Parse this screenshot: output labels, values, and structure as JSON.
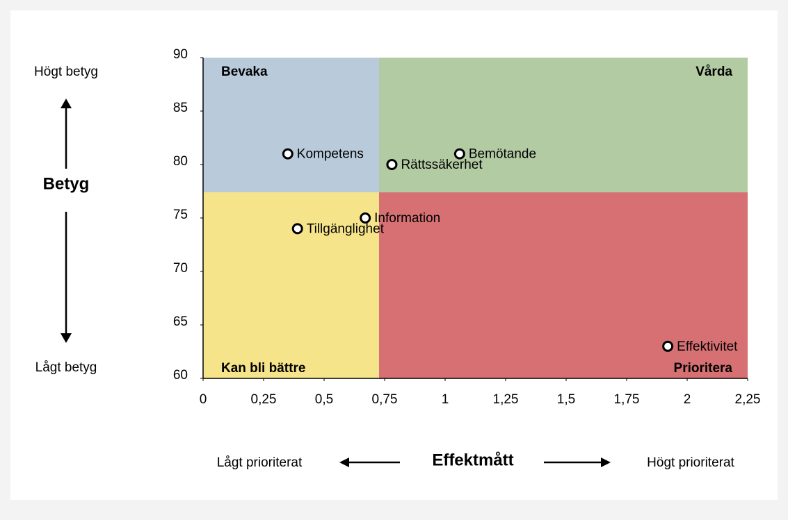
{
  "chart_data": {
    "type": "scatter",
    "x": [
      0.35,
      0.78,
      1.06,
      0.67,
      0.39,
      1.92
    ],
    "values": [
      81,
      80,
      81,
      75,
      74,
      63
    ],
    "point_labels": [
      "Kompetens",
      "Rättssäkerhet",
      "Bemötande",
      "Information",
      "Tillgänglighet",
      "Effektivitet"
    ],
    "xlim": [
      0,
      2.25
    ],
    "ylim": [
      60,
      90
    ],
    "xticks": [
      0,
      {
        "value": 0.25,
        "label": "0,25"
      },
      {
        "value": 0.5,
        "label": "0,5"
      },
      {
        "value": 0.75,
        "label": "0,75"
      },
      1,
      {
        "value": 1.25,
        "label": "1,25"
      },
      {
        "value": 1.5,
        "label": "1,5"
      },
      {
        "value": 1.75,
        "label": "1,75"
      },
      2,
      {
        "value": 2.25,
        "label": "2,25"
      }
    ],
    "yticks": [
      60,
      65,
      70,
      75,
      80,
      85,
      90
    ],
    "quadrants": [
      {
        "label": "Bevaka",
        "color": "#b9cadb",
        "x": [
          0,
          0.727
        ],
        "y": [
          77.4,
          90
        ],
        "corner": "top-left"
      },
      {
        "label": "Vårda",
        "color": "#b3cba3",
        "x": [
          0.727,
          2.25
        ],
        "y": [
          77.4,
          90
        ],
        "corner": "top-right"
      },
      {
        "label": "Kan bli bättre",
        "color": "#f6e48a",
        "x": [
          0,
          0.727
        ],
        "y": [
          60,
          77.4
        ],
        "corner": "bottom-left"
      },
      {
        "label": "Prioritera",
        "color": "#d67073",
        "x": [
          0.727,
          2.25
        ],
        "y": [
          60,
          77.4
        ],
        "corner": "bottom-right"
      }
    ],
    "y_axis": {
      "label": "Betyg",
      "high": "Högt betyg",
      "low": "Lågt betyg"
    },
    "x_axis": {
      "label": "Effektmått",
      "low": "Lågt prioriterat",
      "high": "Högt prioriterat"
    }
  }
}
